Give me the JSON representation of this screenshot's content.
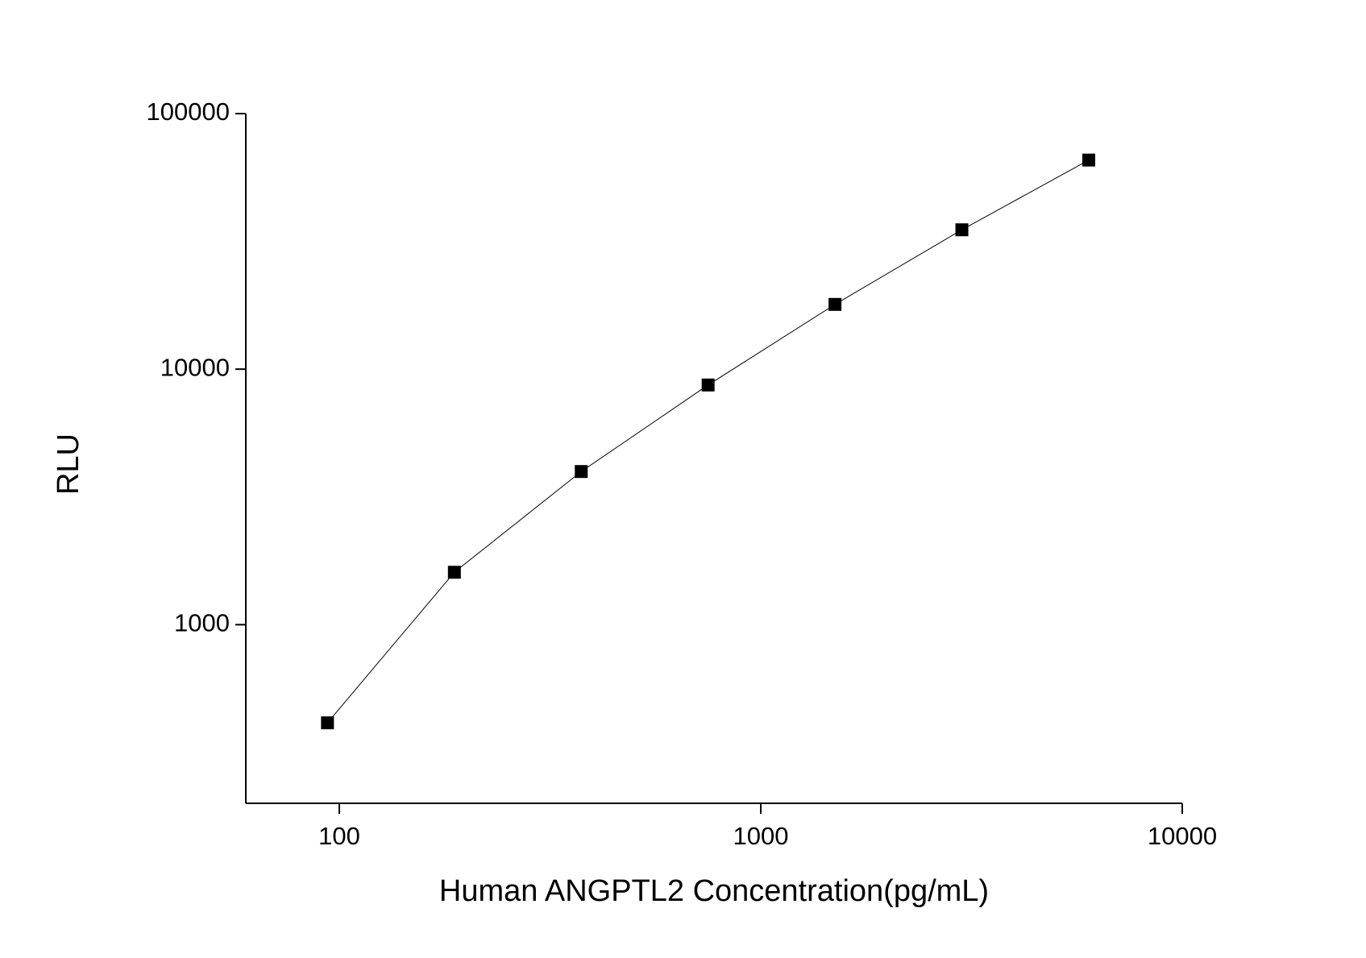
{
  "chart_data": {
    "type": "line",
    "x_label": "Human ANGPTL2 Concentration(pg/mL)",
    "y_label": "RLU",
    "x": [
      93.75,
      187.5,
      375,
      750,
      1500,
      3000,
      6000
    ],
    "series": [
      {
        "color": "#000000",
        "values": [
          413,
          1604,
          3975,
          8670,
          17920,
          35100,
          65800
        ]
      }
    ],
    "xlim": [
      60,
      10000
    ],
    "xticks": [
      100,
      1000,
      10000
    ],
    "ylim": [
      200,
      100000
    ],
    "yticks": [
      1000,
      10000,
      100000
    ],
    "xscale": "log",
    "yscale": "log",
    "grid": false
  }
}
